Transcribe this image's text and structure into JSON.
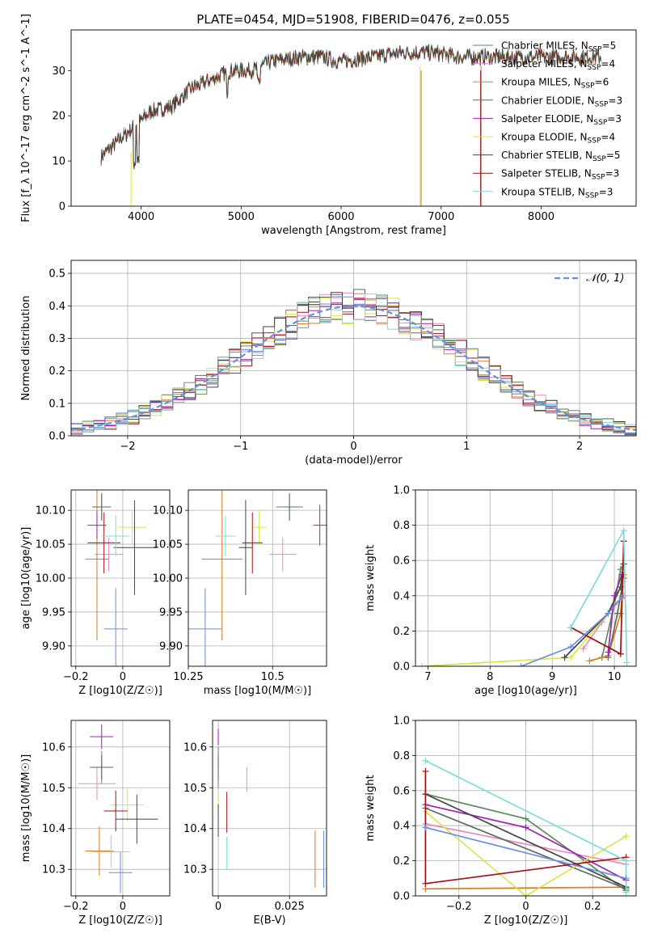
{
  "title": "PLATE=0454, MJD=51908, FIBERID=0476, z=0.055",
  "colors": [
    "#5b8c5a",
    "#e78ac3",
    "#e07b1a",
    "#5d6b5d",
    "#a020b0",
    "#d8e64a",
    "#444444",
    "#a01010",
    "#7fdada",
    "#6a8ee0"
  ],
  "chart_data": [
    {
      "id": "spectrum",
      "type": "line",
      "xlabel": "wavelength [Angstrom, rest frame]",
      "ylabel": "Flux [f_λ 10^-17 erg cm^-2 s^-1 A^-1]",
      "xlim": [
        3300,
        8950
      ],
      "ylim": [
        0,
        39
      ],
      "xticks": [
        4000,
        5000,
        6000,
        7000,
        8000
      ],
      "yticks": [
        0,
        10,
        20,
        30
      ],
      "grid": false,
      "legend_position": "right",
      "x_range": [
        3600,
        8600
      ],
      "series": [
        {
          "name": "Chabrier MILES",
          "nssp": "5"
        },
        {
          "name": "Salpeter MILES",
          "nssp": "4"
        },
        {
          "name": "Kroupa MILES",
          "nssp": "6"
        },
        {
          "name": "Chabrier ELODIE",
          "nssp": "3"
        },
        {
          "name": "Salpeter ELODIE",
          "nssp": "3"
        },
        {
          "name": "Kroupa ELODIE",
          "nssp": "4"
        },
        {
          "name": "Chabrier STELIB",
          "nssp": "5"
        },
        {
          "name": "Salpeter STELIB",
          "nssp": "3"
        },
        {
          "name": "Kroupa STELIB",
          "nssp": "3"
        }
      ],
      "continuum": [
        [
          3600,
          11
        ],
        [
          3800,
          15
        ],
        [
          3950,
          18
        ],
        [
          4100,
          21
        ],
        [
          4300,
          22
        ],
        [
          4500,
          26
        ],
        [
          4700,
          28
        ],
        [
          4900,
          30
        ],
        [
          5100,
          30
        ],
        [
          5300,
          32
        ],
        [
          5600,
          33
        ],
        [
          5800,
          33
        ],
        [
          6000,
          32
        ],
        [
          6300,
          33
        ],
        [
          6600,
          34
        ],
        [
          6900,
          34
        ],
        [
          7200,
          33
        ],
        [
          7500,
          33
        ],
        [
          7800,
          33
        ],
        [
          8200,
          33
        ],
        [
          8600,
          33
        ]
      ]
    },
    {
      "id": "residuals",
      "type": "histogram",
      "xlabel": "(data-model)/error",
      "ylabel": "Normed distribution",
      "xlim": [
        -2.5,
        2.5
      ],
      "ylim": [
        0,
        0.54
      ],
      "xticks": [
        -2,
        -1,
        0,
        1,
        2
      ],
      "yticks": [
        0.0,
        0.1,
        0.2,
        0.3,
        0.4,
        0.5
      ],
      "grid": true,
      "legend": "𝒩(0, 1)",
      "legend_position": "top-right",
      "bin_width": 0.1
    },
    {
      "id": "age-vs-z",
      "type": "errorbar",
      "xlabel": "Z [log10(Z/Z☉)]",
      "ylabel": "age  [log10(age/yr)]",
      "xlim": [
        -0.22,
        0.2
      ],
      "ylim": [
        9.87,
        10.13
      ],
      "xticks": [
        -0.2,
        0.0
      ],
      "yticks": [
        9.9,
        9.95,
        10.0,
        10.05,
        10.1
      ],
      "grid": true,
      "points": [
        {
          "x": -0.09,
          "y": 10.105,
          "dx": 0.03,
          "dy": 0.02,
          "c": 0
        },
        {
          "x": -0.06,
          "y": 10.035,
          "dx": 0.06,
          "dy": 0.025,
          "c": 1
        },
        {
          "x": -0.11,
          "y": 10.028,
          "dx": 0.05,
          "dy": 0.12,
          "c": 2
        },
        {
          "x": -0.09,
          "y": 10.105,
          "dx": 0.04,
          "dy": 0.02,
          "c": 3
        },
        {
          "x": -0.11,
          "y": 10.078,
          "dx": 0.04,
          "dy": 0.02,
          "c": 4
        },
        {
          "x": 0.04,
          "y": 10.075,
          "dx": 0.06,
          "dy": 0.025,
          "c": 5
        },
        {
          "x": 0.05,
          "y": 10.045,
          "dx": 0.09,
          "dy": 0.07,
          "c": 6
        },
        {
          "x": -0.08,
          "y": 10.052,
          "dx": 0.07,
          "dy": 0.045,
          "c": 7
        },
        {
          "x": -0.03,
          "y": 10.062,
          "dx": 0.06,
          "dy": 0.03,
          "c": 8
        },
        {
          "x": -0.03,
          "y": 9.925,
          "dx": 0.05,
          "dy": 0.06,
          "c": 9
        }
      ]
    },
    {
      "id": "age-vs-mass",
      "type": "errorbar",
      "xlabel": "mass [log10(M/M☉)]",
      "ylabel": "",
      "xlim": [
        10.25,
        10.66
      ],
      "ylim": [
        9.87,
        10.13
      ],
      "xticks": [
        10.25,
        10.5
      ],
      "yticks": [
        9.9,
        9.95,
        10.0,
        10.05,
        10.1
      ],
      "grid": true,
      "points": [
        {
          "x": 10.55,
          "y": 10.105,
          "dx": 0.04,
          "dy": 0.02,
          "c": 0
        },
        {
          "x": 10.53,
          "y": 10.035,
          "dx": 0.04,
          "dy": 0.025,
          "c": 1
        },
        {
          "x": 10.35,
          "y": 10.028,
          "dx": 0.06,
          "dy": 0.12,
          "c": 2
        },
        {
          "x": 10.55,
          "y": 10.105,
          "dx": 0.02,
          "dy": 0.02,
          "c": 3
        },
        {
          "x": 10.64,
          "y": 10.078,
          "dx": 0.02,
          "dy": 0.03,
          "c": 4
        },
        {
          "x": 10.46,
          "y": 10.075,
          "dx": 0.02,
          "dy": 0.025,
          "c": 5
        },
        {
          "x": 10.42,
          "y": 10.045,
          "dx": 0.02,
          "dy": 0.07,
          "c": 6
        },
        {
          "x": 10.44,
          "y": 10.052,
          "dx": 0.03,
          "dy": 0.045,
          "c": 7
        },
        {
          "x": 10.36,
          "y": 10.062,
          "dx": 0.03,
          "dy": 0.03,
          "c": 8
        },
        {
          "x": 10.3,
          "y": 9.925,
          "dx": 0.05,
          "dy": 0.06,
          "c": 9
        }
      ]
    },
    {
      "id": "mass-weight-vs-age",
      "type": "line",
      "xlabel": "age  [log10(age/yr)]",
      "ylabel": "mass weight",
      "xlim": [
        6.8,
        10.35
      ],
      "ylim": [
        0,
        1
      ],
      "xticks": [
        7,
        8,
        9,
        10
      ],
      "yticks": [
        0.0,
        0.2,
        0.4,
        0.6,
        0.8,
        1.0
      ],
      "grid": true,
      "series": [
        {
          "c": 0,
          "points": [
            [
              9.8,
              0.05
            ],
            [
              10.0,
              0.35
            ],
            [
              10.1,
              0.55
            ],
            [
              10.15,
              0.58
            ]
          ]
        },
        {
          "c": 1,
          "points": [
            [
              9.5,
              0.1
            ],
            [
              9.8,
              0.25
            ],
            [
              10.0,
              0.35
            ],
            [
              10.15,
              0.4
            ]
          ]
        },
        {
          "c": 2,
          "points": [
            [
              9.6,
              0.03
            ],
            [
              9.9,
              0.06
            ],
            [
              10.1,
              0.3
            ],
            [
              10.15,
              0.52
            ]
          ]
        },
        {
          "c": 3,
          "points": [
            [
              9.9,
              0.05
            ],
            [
              10.05,
              0.3
            ],
            [
              10.15,
              0.5
            ]
          ]
        },
        {
          "c": 4,
          "points": [
            [
              9.9,
              0.08
            ],
            [
              10.0,
              0.4
            ],
            [
              10.12,
              0.52
            ]
          ]
        },
        {
          "c": 5,
          "points": [
            [
              6.9,
              0.0
            ],
            [
              9.3,
              0.05
            ],
            [
              9.9,
              0.3
            ],
            [
              10.15,
              0.48
            ]
          ]
        },
        {
          "c": 6,
          "points": [
            [
              9.2,
              0.05
            ],
            [
              9.9,
              0.3
            ],
            [
              10.1,
              0.45
            ],
            [
              10.15,
              0.58
            ]
          ]
        },
        {
          "c": 7,
          "points": [
            [
              9.3,
              0.22
            ],
            [
              10.1,
              0.07
            ],
            [
              10.15,
              0.71
            ]
          ]
        },
        {
          "c": 8,
          "points": [
            [
              9.3,
              0.22
            ],
            [
              10.15,
              0.77
            ],
            [
              10.2,
              0.02
            ]
          ]
        },
        {
          "c": 9,
          "points": [
            [
              8.5,
              0.0
            ],
            [
              9.3,
              0.11
            ],
            [
              9.9,
              0.3
            ],
            [
              10.12,
              0.39
            ]
          ]
        }
      ]
    },
    {
      "id": "mass-vs-z",
      "type": "errorbar",
      "xlabel": "Z [log10(Z/Z☉)]",
      "ylabel": "mass [log10(M/M☉)]",
      "xlim": [
        -0.22,
        0.2
      ],
      "ylim": [
        10.235,
        10.665
      ],
      "xticks": [
        -0.2,
        0.0
      ],
      "yticks": [
        10.3,
        10.4,
        10.5,
        10.6
      ],
      "grid": true,
      "points": [
        {
          "x": -0.09,
          "y": 10.55,
          "dx": 0.05,
          "dy": 0.04,
          "c": 0
        },
        {
          "x": -0.11,
          "y": 10.51,
          "dx": 0.08,
          "dy": 0.04,
          "c": 1
        },
        {
          "x": -0.1,
          "y": 10.345,
          "dx": 0.06,
          "dy": 0.06,
          "c": 2
        },
        {
          "x": -0.09,
          "y": 10.55,
          "dx": 0.05,
          "dy": 0.03,
          "c": 3
        },
        {
          "x": -0.09,
          "y": 10.625,
          "dx": 0.05,
          "dy": 0.03,
          "c": 4
        },
        {
          "x": 0.02,
          "y": 10.458,
          "dx": 0.07,
          "dy": 0.04,
          "c": 5
        },
        {
          "x": 0.06,
          "y": 10.423,
          "dx": 0.09,
          "dy": 0.06,
          "c": 6
        },
        {
          "x": -0.03,
          "y": 10.443,
          "dx": 0.05,
          "dy": 0.05,
          "c": 7
        },
        {
          "x": -0.05,
          "y": 10.343,
          "dx": 0.08,
          "dy": 0.04,
          "c": 8
        },
        {
          "x": -0.01,
          "y": 10.292,
          "dx": 0.05,
          "dy": 0.05,
          "c": 9
        }
      ]
    },
    {
      "id": "mass-vs-ebv",
      "type": "errorbar",
      "xlabel": "E(B-V)",
      "ylabel": "",
      "xlim": [
        -0.002,
        0.038
      ],
      "ylim": [
        10.235,
        10.665
      ],
      "xticks": [
        0.0,
        0.025
      ],
      "yticks": [
        10.3,
        10.4,
        10.5,
        10.6
      ],
      "grid": true,
      "points": [
        {
          "x": 0.0,
          "y": 10.55,
          "dx": 0,
          "dy": 0.05,
          "c": 0
        },
        {
          "x": 0.01,
          "y": 10.52,
          "dx": 0,
          "dy": 0.03,
          "c": 1
        },
        {
          "x": 0.034,
          "y": 10.325,
          "dx": 0,
          "dy": 0.07,
          "c": 2
        },
        {
          "x": 0.0,
          "y": 10.55,
          "dx": 0,
          "dy": 0.03,
          "c": 3
        },
        {
          "x": 0.0,
          "y": 10.625,
          "dx": 0,
          "dy": 0.02,
          "c": 4
        },
        {
          "x": 0.0,
          "y": 10.46,
          "dx": 0,
          "dy": 0.03,
          "c": 5
        },
        {
          "x": 0.0,
          "y": 10.42,
          "dx": 0,
          "dy": 0.04,
          "c": 6
        },
        {
          "x": 0.003,
          "y": 10.44,
          "dx": 0,
          "dy": 0.05,
          "c": 7
        },
        {
          "x": 0.003,
          "y": 10.34,
          "dx": 0,
          "dy": 0.04,
          "c": 8
        },
        {
          "x": 0.037,
          "y": 10.325,
          "dx": 0,
          "dy": 0.07,
          "c": 9
        }
      ]
    },
    {
      "id": "mass-weight-vs-z",
      "type": "line",
      "xlabel": "Z [log10(Z/Z☉)]",
      "ylabel": "mass weight",
      "xlim": [
        -0.33,
        0.33
      ],
      "ylim": [
        0,
        1
      ],
      "xticks": [
        -0.2,
        0.0,
        0.2
      ],
      "yticks": [
        0.0,
        0.2,
        0.4,
        0.6,
        0.8,
        1.0
      ],
      "grid": true,
      "series": [
        {
          "c": 0,
          "points": [
            [
              -0.3,
              0.58
            ],
            [
              0.0,
              0.44
            ],
            [
              0.3,
              0.03
            ]
          ]
        },
        {
          "c": 1,
          "points": [
            [
              -0.3,
              0.41
            ],
            [
              0.3,
              0.18
            ]
          ]
        },
        {
          "c": 2,
          "points": [
            [
              -0.3,
              0.04
            ],
            [
              0.3,
              0.05
            ]
          ]
        },
        {
          "c": 3,
          "points": [
            [
              -0.3,
              0.5
            ],
            [
              0.3,
              0.04
            ]
          ]
        },
        {
          "c": 4,
          "points": [
            [
              -0.3,
              0.52
            ],
            [
              0.0,
              0.39
            ],
            [
              0.3,
              0.09
            ]
          ]
        },
        {
          "c": 5,
          "points": [
            [
              -0.3,
              0.48
            ],
            [
              0.0,
              0.0
            ],
            [
              0.3,
              0.34
            ]
          ]
        },
        {
          "c": 6,
          "points": [
            [
              -0.3,
              0.58
            ],
            [
              0.3,
              0.05
            ]
          ]
        },
        {
          "c": 7,
          "points": [
            [
              -0.3,
              0.71
            ],
            [
              -0.3,
              0.07
            ],
            [
              0.3,
              0.22
            ]
          ]
        },
        {
          "c": 8,
          "points": [
            [
              -0.3,
              0.77
            ],
            [
              0.3,
              0.2
            ],
            [
              0.3,
              0.02
            ]
          ]
        },
        {
          "c": 9,
          "points": [
            [
              -0.3,
              0.39
            ],
            [
              0.3,
              0.1
            ]
          ]
        }
      ]
    }
  ]
}
